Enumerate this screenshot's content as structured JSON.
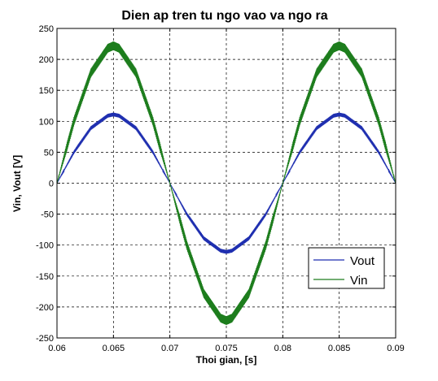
{
  "chart_data": {
    "type": "line",
    "title": "Dien ap tren tu ngo vao va ngo ra",
    "xlabel": "Thoi gian, [s]",
    "ylabel": "Vin, Vout [V]",
    "xlim": [
      0.06,
      0.09
    ],
    "ylim": [
      -250,
      250
    ],
    "xticks": [
      0.06,
      0.065,
      0.07,
      0.075,
      0.08,
      0.085,
      0.09
    ],
    "xtick_labels": [
      "0.06",
      "0.065",
      "0.07",
      "0.075",
      "0.08",
      "0.085",
      "0.09"
    ],
    "yticks": [
      -250,
      -200,
      -150,
      -100,
      -50,
      0,
      50,
      100,
      150,
      200,
      250
    ],
    "ytick_labels": [
      "-250",
      "-200",
      "-150",
      "-100",
      "-50",
      "0",
      "50",
      "100",
      "150",
      "200",
      "250"
    ],
    "grid": true,
    "grid_style": "dashed",
    "legend_position": "lower-right",
    "series": [
      {
        "name": "Vout",
        "color": "#1f2fb0",
        "ripple": 3,
        "x": [
          0.06,
          0.0615,
          0.063,
          0.0645,
          0.065,
          0.0655,
          0.067,
          0.0685,
          0.07,
          0.0715,
          0.073,
          0.0745,
          0.075,
          0.0755,
          0.077,
          0.0785,
          0.08,
          0.0815,
          0.083,
          0.0845,
          0.085,
          0.0855,
          0.087,
          0.0885,
          0.09
        ],
        "values": [
          0,
          50,
          89,
          109,
          111,
          109,
          89,
          50,
          0,
          -50,
          -89,
          -109,
          -111,
          -109,
          -89,
          -50,
          0,
          50,
          89,
          109,
          111,
          109,
          89,
          50,
          0
        ]
      },
      {
        "name": "Vin",
        "color": "#1d7d1d",
        "ripple": 7,
        "x": [
          0.06,
          0.0615,
          0.063,
          0.0645,
          0.065,
          0.0655,
          0.067,
          0.0685,
          0.07,
          0.0715,
          0.073,
          0.0745,
          0.075,
          0.0755,
          0.077,
          0.0785,
          0.08,
          0.0815,
          0.083,
          0.0845,
          0.085,
          0.0855,
          0.087,
          0.0885,
          0.09
        ],
        "values": [
          0,
          100,
          178,
          218,
          222,
          218,
          178,
          100,
          0,
          -100,
          -178,
          -218,
          -222,
          -218,
          -178,
          -100,
          0,
          100,
          178,
          218,
          222,
          218,
          178,
          100,
          0
        ]
      }
    ]
  }
}
